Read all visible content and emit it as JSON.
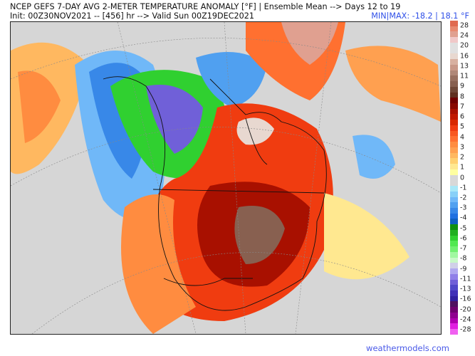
{
  "header": {
    "title": "NCEP GEFS 7-DAY AVG 2-METER TEMPERATURE ANOMALY [°F] | Ensemble Mean --> Days 12 to 19",
    "init_line": "Init: 00Z30NOV2021 -- [456] hr --> Valid Sun 00Z19DEC2021",
    "minmax": "MIN|MAX: -18.2 | 18.1 °F"
  },
  "colorbar": {
    "labels": [
      "28",
      "24",
      "20",
      "16",
      "13",
      "11",
      "9",
      "8",
      "7",
      "6",
      "5",
      "4",
      "3",
      "2",
      "1",
      "0",
      "-1",
      "-2",
      "-3",
      "-4",
      "-5",
      "-6",
      "-7",
      "-8",
      "-9",
      "-11",
      "-13",
      "-16",
      "-20",
      "-24",
      "-28"
    ],
    "colors": [
      "#e06a50",
      "#e88a70",
      "#e0a090",
      "#f0c8c8",
      "#e0e0e0",
      "#e0e0e0",
      "#e8d8d0",
      "#d8b0a0",
      "#c89888",
      "#b08878",
      "#987060",
      "#886050",
      "#704838",
      "#603020",
      "#700000",
      "#880800",
      "#a81000",
      "#c01800",
      "#d82800",
      "#f03c10",
      "#f85820",
      "#ff7030",
      "#ff8c40",
      "#ffa050",
      "#ffb860",
      "#ffd070",
      "#ffe890",
      "#ffffa0",
      "#d8d8d8",
      "#d8d8d8",
      "#a8e8f8",
      "#88d0f8",
      "#70b8f8",
      "#50a0f0",
      "#3888e8",
      "#2070e0",
      "#1060c0",
      "#109010",
      "#20b020",
      "#30d030",
      "#50e850",
      "#70f070",
      "#a0f8a0",
      "#c8f8c8",
      "#d0d0e8",
      "#b0a8f0",
      "#9080e8",
      "#7060d8",
      "#5048c8",
      "#4030b8",
      "#3020a0",
      "#501060",
      "#700070",
      "#900090",
      "#b000b0",
      "#e020e0",
      "#f060f0"
    ]
  },
  "footer": {
    "site": "weathermodels.com"
  }
}
